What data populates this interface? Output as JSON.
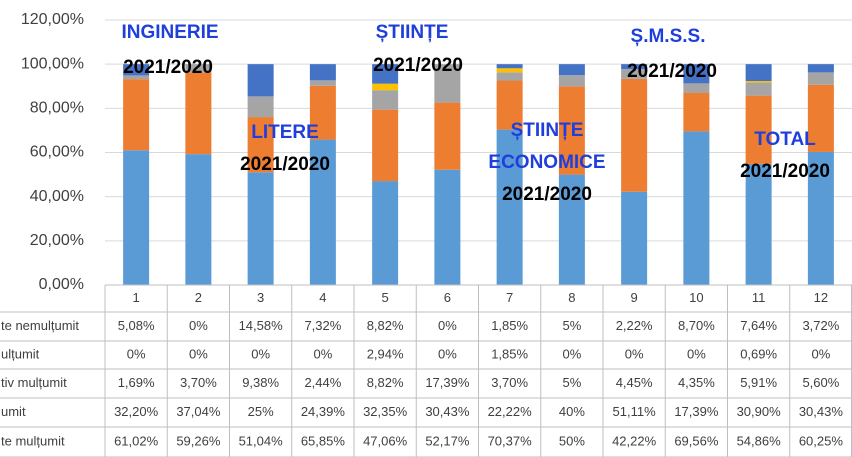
{
  "chart_data": {
    "type": "stacked_bar",
    "categories": [
      "1",
      "2",
      "3",
      "4",
      "5",
      "6",
      "7",
      "8",
      "9",
      "10",
      "11",
      "12"
    ],
    "series": [
      {
        "name": "te nemulțumit",
        "color": "#4472c4",
        "values": [
          5.08,
          0,
          14.58,
          7.32,
          8.82,
          0,
          1.85,
          5,
          2.22,
          8.7,
          7.64,
          3.72
        ],
        "value_labels": [
          "5,08%",
          "0%",
          "14,58%",
          "7,32%",
          "8,82%",
          "0%",
          "1,85%",
          "5%",
          "2,22%",
          "8,70%",
          "7,64%",
          "3,72%"
        ]
      },
      {
        "name": "ulțumit",
        "color": "#ffc000",
        "values": [
          0,
          0,
          0,
          0,
          2.94,
          0,
          1.85,
          0,
          0,
          0,
          0.69,
          0
        ],
        "value_labels": [
          "0%",
          "0%",
          "0%",
          "0%",
          "2,94%",
          "0%",
          "1,85%",
          "0%",
          "0%",
          "0%",
          "0,69%",
          "0%"
        ]
      },
      {
        "name": "tiv mulțumit",
        "color": "#a5a5a5",
        "values": [
          1.69,
          3.7,
          9.38,
          2.44,
          8.82,
          17.39,
          3.7,
          5,
          4.45,
          4.35,
          5.91,
          5.6
        ],
        "value_labels": [
          "1,69%",
          "3,70%",
          "9,38%",
          "2,44%",
          "8,82%",
          "17,39%",
          "3,70%",
          "5%",
          "4,45%",
          "4,35%",
          "5,91%",
          "5,60%"
        ]
      },
      {
        "name": "umit",
        "color": "#ed7d31",
        "values": [
          32.2,
          37.04,
          25,
          24.39,
          32.35,
          30.43,
          22.22,
          40,
          51.11,
          17.39,
          30.9,
          30.43
        ],
        "value_labels": [
          "32,20%",
          "37,04%",
          "25%",
          "24,39%",
          "32,35%",
          "30,43%",
          "22,22%",
          "40%",
          "51,11%",
          "17,39%",
          "30,90%",
          "30,43%"
        ]
      },
      {
        "name": "te mulțumit",
        "color": "#5b9bd5",
        "values": [
          61.02,
          59.26,
          51.04,
          65.85,
          47.06,
          52.17,
          70.37,
          50,
          42.22,
          69.56,
          54.86,
          60.25
        ],
        "value_labels": [
          "61,02%",
          "59,26%",
          "51,04%",
          "65,85%",
          "47,06%",
          "52,17%",
          "70,37%",
          "50%",
          "42,22%",
          "69,56%",
          "54,86%",
          "60,25%"
        ]
      }
    ],
    "ylim": [
      0,
      120
    ],
    "yticks": [
      {
        "value": 0,
        "label": "0,00%"
      },
      {
        "value": 20,
        "label": "20,00%"
      },
      {
        "value": 40,
        "label": "40,00%"
      },
      {
        "value": 60,
        "label": "60,00%"
      },
      {
        "value": 80,
        "label": "80,00%"
      },
      {
        "value": 100,
        "label": "100,00%"
      },
      {
        "value": 120,
        "label": "120,00%"
      }
    ],
    "grid": true,
    "annotations": [
      {
        "text": "INGINERIE",
        "color": "#1f3fdc"
      },
      {
        "text": "2021/2020",
        "color": "#000000"
      },
      {
        "text": "LITERE",
        "color": "#1f3fdc"
      },
      {
        "text": "2021/2020",
        "color": "#000000"
      },
      {
        "text": "ȘTIINȚE",
        "color": "#1f3fdc"
      },
      {
        "text": "2021/2020",
        "color": "#000000"
      },
      {
        "text": "ȘTIINȚE",
        "color": "#1f3fdc"
      },
      {
        "text": "ECONOMICE",
        "color": "#1f3fdc"
      },
      {
        "text": "2021/2020",
        "color": "#000000"
      },
      {
        "text": "Ș.M.S.S.",
        "color": "#1f3fdc"
      },
      {
        "text": "2021/2020",
        "color": "#000000"
      },
      {
        "text": "TOTAL",
        "color": "#1f3fdc"
      },
      {
        "text": "2021/2020",
        "color": "#000000"
      }
    ]
  }
}
